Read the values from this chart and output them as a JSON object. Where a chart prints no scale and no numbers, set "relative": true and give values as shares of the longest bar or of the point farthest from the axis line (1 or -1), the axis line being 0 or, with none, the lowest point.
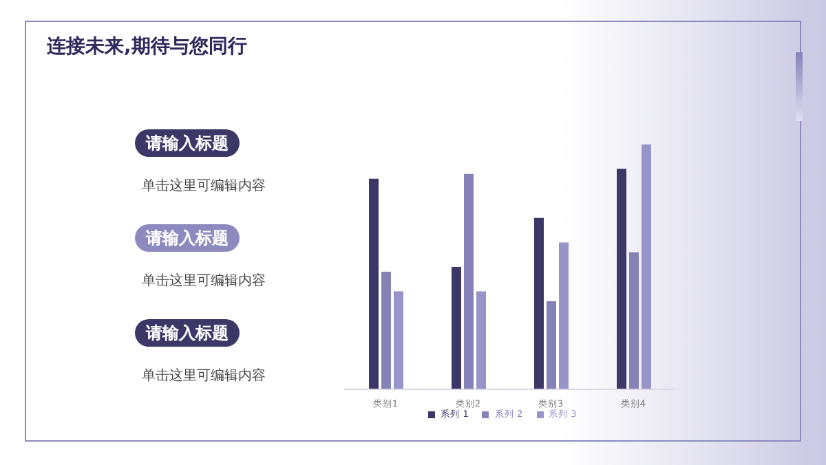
{
  "chart_data": {
    "type": "bar",
    "title": "连接未来,期待与您同行",
    "relative": true,
    "categories": [
      "类别1",
      "类别2",
      "类别3",
      "类别4"
    ],
    "series": [
      {
        "name": "系列 1",
        "color": "#3b3868",
        "values": [
          0.86,
          0.5,
          0.7,
          0.9
        ]
      },
      {
        "name": "系列 2",
        "color": "#8582b8",
        "values": [
          0.48,
          0.88,
          0.36,
          0.56
        ]
      },
      {
        "name": "系列 3",
        "color": "#9794c8",
        "values": [
          0.4,
          0.4,
          0.6,
          1
        ]
      }
    ],
    "legend": "bottom",
    "grid": false,
    "annotations": [
      "请输入标题",
      "单击这里可编辑内容",
      "请输入标题",
      "单击这里可编辑内容",
      "请输入标题",
      "单击这里可编辑内容"
    ]
  }
}
